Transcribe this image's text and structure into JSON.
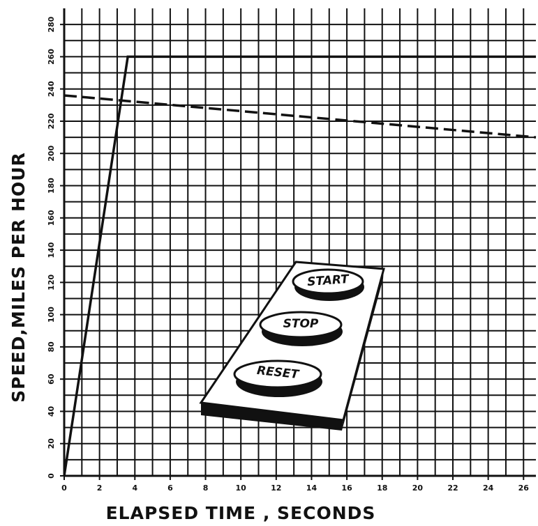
{
  "chart_data": {
    "type": "line",
    "xlabel": "ELAPSED TIME , SECONDS",
    "ylabel": "SPEED,MILES PER HOUR",
    "xlim": [
      0,
      26.7
    ],
    "ylim": [
      0,
      290
    ],
    "xticks": [
      0,
      2,
      4,
      6,
      8,
      10,
      12,
      14,
      16,
      18,
      20,
      22,
      24,
      26
    ],
    "yticks": [
      0,
      20,
      40,
      60,
      80,
      100,
      120,
      140,
      160,
      180,
      200,
      220,
      240,
      260,
      280
    ],
    "grid": true,
    "xgrid_step": 1,
    "ygrid_step": 10,
    "series": [
      {
        "color": "#111111",
        "dashed": false,
        "x": [
          0,
          3.6,
          26.7
        ],
        "values": [
          0,
          260,
          260
        ]
      },
      {
        "color": "#111111",
        "dashed": true,
        "x": [
          0,
          26.7
        ],
        "values": [
          236,
          210
        ]
      }
    ]
  },
  "illustration": {
    "buttons": [
      "START",
      "STOP",
      "RESET"
    ]
  }
}
